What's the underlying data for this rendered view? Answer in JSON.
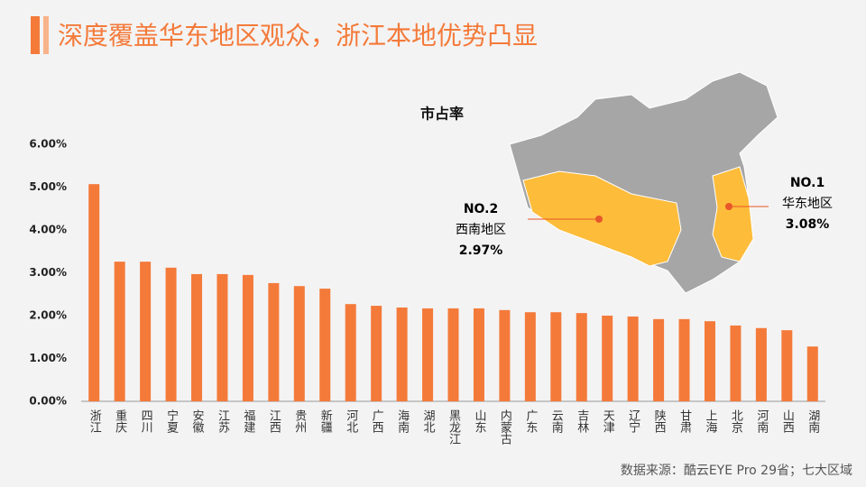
{
  "title": "深度覆盖华东地区观众，浙江本地优势凸显",
  "source": "数据来源：酷云EYE Pro 29省；七大区域",
  "chart_data": {
    "type": "bar",
    "title": "市占率",
    "categories": [
      "浙江",
      "重庆",
      "四川",
      "宁夏",
      "安徽",
      "江苏",
      "福建",
      "江西",
      "贵州",
      "新疆",
      "河北",
      "广西",
      "海南",
      "湖北",
      "黑龙江",
      "山东",
      "内蒙古",
      "广东",
      "云南",
      "吉林",
      "天津",
      "辽宁",
      "陕西",
      "甘肃",
      "上海",
      "北京",
      "河南",
      "山西",
      "湖南"
    ],
    "values": [
      5.07,
      3.26,
      3.26,
      3.12,
      2.97,
      2.97,
      2.95,
      2.76,
      2.69,
      2.63,
      2.27,
      2.23,
      2.19,
      2.17,
      2.17,
      2.17,
      2.13,
      2.08,
      2.08,
      2.06,
      2.0,
      1.98,
      1.92,
      1.92,
      1.87,
      1.77,
      1.71,
      1.66,
      1.28
    ],
    "color": "#f47a3a",
    "ylim": [
      0,
      6
    ],
    "yticks": [
      {
        "value": 0,
        "label": "0.00%"
      },
      {
        "value": 1,
        "label": "1.00%"
      },
      {
        "value": 2,
        "label": "2.00%"
      },
      {
        "value": 3,
        "label": "3.00%"
      },
      {
        "value": 4,
        "label": "4.00%"
      },
      {
        "value": 5,
        "label": "5.00%"
      },
      {
        "value": 6,
        "label": "6.00%"
      }
    ],
    "annotations": [
      {
        "rank": "NO.1",
        "region": "华东地区",
        "value": 3.08,
        "label": "3.08%"
      },
      {
        "rank": "NO.2",
        "region": "西南地区",
        "value": 2.97,
        "label": "2.97%"
      }
    ]
  }
}
